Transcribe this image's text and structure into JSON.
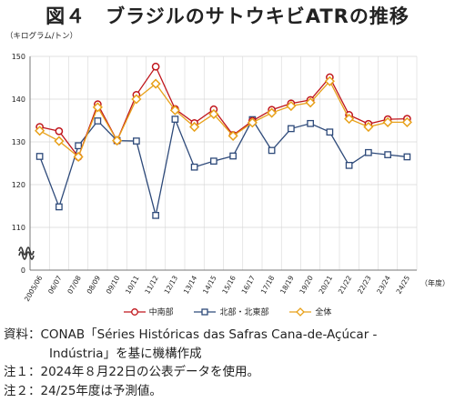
{
  "title": "図４　ブラジルのサトウキビATRの推移",
  "unit_label": "（キログラム/トン）",
  "year_unit": "（年度）",
  "colors": {
    "south_central": "#c0161c",
    "north_northeast": "#2e4a7a",
    "total": "#e8a11a",
    "grid": "#d7d7d7",
    "axis": "#777777"
  },
  "chart_data": {
    "type": "line",
    "title": "図４　ブラジルのサトウキビATRの推移",
    "ylabel": "（キログラム/トン）",
    "xlabel": "（年度）",
    "ylim": [
      100,
      150
    ],
    "y_ticks": [
      "150",
      "140",
      "130",
      "120",
      "110"
    ],
    "y_zero_label": "0",
    "y_axis_break": true,
    "grid": true,
    "legend_position": "bottom",
    "categories": [
      "2005/06",
      "06/07",
      "07/08",
      "08/09",
      "09/10",
      "10/11",
      "11/12",
      "12/13",
      "13/14",
      "14/15",
      "15/16",
      "16/17",
      "17/18",
      "18/19",
      "19/20",
      "20/21",
      "21/22",
      "22/23",
      "23/24",
      "24/25"
    ],
    "series": [
      {
        "name": "中南部",
        "key": "south_central",
        "values": [
          133.5,
          132.5,
          126.5,
          138.8,
          130.3,
          141.0,
          147.6,
          137.7,
          134.4,
          137.6,
          131.6,
          134.9,
          137.5,
          139.0,
          139.8,
          145.1,
          136.3,
          134.2,
          135.3,
          135.4
        ]
      },
      {
        "name": "北部・北東部",
        "key": "north_northeast",
        "values": [
          126.6,
          114.8,
          129.1,
          134.9,
          130.3,
          130.2,
          112.8,
          135.3,
          124.1,
          125.5,
          126.7,
          135.2,
          128.0,
          133.1,
          134.3,
          132.3,
          124.5,
          127.5,
          127.0,
          126.5
        ]
      },
      {
        "name": "全体",
        "key": "total",
        "values": [
          132.6,
          130.2,
          126.5,
          138.1,
          130.3,
          140.0,
          143.6,
          137.4,
          133.5,
          136.5,
          131.4,
          134.5,
          136.8,
          138.4,
          139.2,
          144.2,
          135.4,
          133.5,
          134.6,
          134.6
        ]
      }
    ]
  },
  "notes": [
    {
      "label": "資料：",
      "text": "CONAB「Séries Históricas das Safras Cana-de-Açúcar -"
    },
    {
      "label": "",
      "text": "Indústria」を基に機構作成"
    },
    {
      "label": "注１：",
      "text": "2024年８月22日の公表データを使用。"
    },
    {
      "label": "注２：",
      "text": "24/25年度は予測値。"
    }
  ]
}
